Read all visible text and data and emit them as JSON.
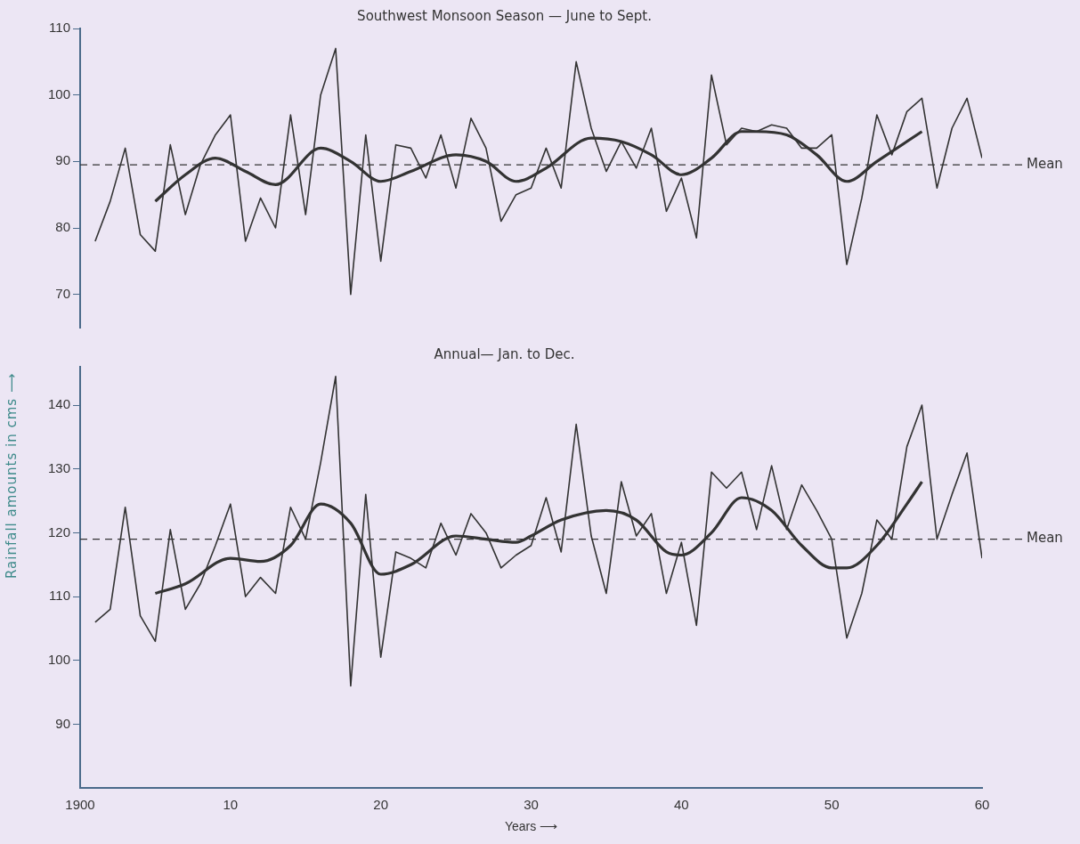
{
  "chart_data": [
    {
      "type": "line",
      "title": "Southwest Monsoon Season — June to Sept.",
      "ylabel": "Rainfall amounts in cms ⟶",
      "xlim": [
        1900,
        1960
      ],
      "ylim": [
        65,
        110
      ],
      "yticks": [
        70,
        80,
        90,
        100,
        110
      ],
      "tick_labels": "y",
      "grid": false,
      "legend": false,
      "marker": "none",
      "series": [
        {
          "color": "#333333",
          "x": [
            1901,
            1902,
            1903,
            1904,
            1905,
            1906,
            1907,
            1908,
            1909,
            1910,
            1911,
            1912,
            1913,
            1914,
            1915,
            1916,
            1917,
            1918,
            1919,
            1920,
            1921,
            1922,
            1923,
            1924,
            1925,
            1926,
            1927,
            1928,
            1929,
            1930,
            1931,
            1932,
            1933,
            1934,
            1935,
            1936,
            1937,
            1938,
            1939,
            1940,
            1941,
            1942,
            1943,
            1944,
            1945,
            1946,
            1947,
            1948,
            1949,
            1950,
            1951,
            1952,
            1953,
            1954,
            1955,
            1956,
            1957,
            1958,
            1959,
            1960
          ],
          "values": [
            78,
            84,
            92,
            79,
            76.5,
            92.5,
            82,
            89.5,
            94,
            97,
            78,
            84.5,
            80,
            97,
            82,
            100,
            107,
            70,
            94,
            75,
            92.5,
            92,
            87.5,
            94,
            86,
            96.5,
            92,
            81,
            85,
            86,
            92,
            86,
            105,
            95,
            88.5,
            93,
            89,
            95,
            82.5,
            87.5,
            78.5,
            103,
            92.5,
            95,
            94.5,
            95.5,
            95,
            92,
            92,
            94,
            74.5,
            84.5,
            97,
            91,
            97.5,
            99.5,
            86,
            95,
            99.5,
            90.5
          ]
        },
        {
          "color": "#333333",
          "x": [
            1905,
            1907,
            1909,
            1911,
            1913,
            1916,
            1918,
            1920,
            1922,
            1925,
            1927,
            1929,
            1931,
            1934,
            1936,
            1938,
            1940,
            1942,
            1944,
            1945,
            1947,
            1949,
            1951,
            1953,
            1956
          ],
          "values": [
            84,
            88,
            90.5,
            88.5,
            86.5,
            92,
            90,
            87,
            88.5,
            91,
            90,
            87,
            89,
            93.5,
            93,
            91,
            88,
            90.5,
            94.5,
            94.5,
            94,
            91,
            87,
            90,
            94.5
          ]
        }
      ],
      "ref_lines": [
        {
          "axis": "y",
          "value": 89.5,
          "label": "Mean",
          "line_style": "dashed"
        }
      ]
    },
    {
      "type": "line",
      "title": "Annual— Jan. to Dec.",
      "xlabel": "Years ⟶",
      "xlim": [
        1900,
        1960
      ],
      "xticks": [
        {
          "value": 1900,
          "label": "1900"
        },
        {
          "value": 1910,
          "label": "10"
        },
        {
          "value": 1920,
          "label": "20"
        },
        {
          "value": 1930,
          "label": "30"
        },
        {
          "value": 1940,
          "label": "40"
        },
        {
          "value": 1950,
          "label": "50"
        },
        {
          "value": 1960,
          "label": "60"
        }
      ],
      "ylim": [
        80,
        146
      ],
      "yticks": [
        90,
        100,
        110,
        120,
        130,
        140
      ],
      "grid": false,
      "legend": false,
      "marker": "none",
      "series": [
        {
          "color": "#333333",
          "x": [
            1901,
            1902,
            1903,
            1904,
            1905,
            1906,
            1907,
            1908,
            1909,
            1910,
            1911,
            1912,
            1913,
            1914,
            1915,
            1916,
            1917,
            1918,
            1919,
            1920,
            1921,
            1922,
            1923,
            1924,
            1925,
            1926,
            1927,
            1928,
            1929,
            1930,
            1931,
            1932,
            1933,
            1934,
            1935,
            1936,
            1937,
            1938,
            1939,
            1940,
            1941,
            1942,
            1943,
            1944,
            1945,
            1946,
            1947,
            1948,
            1949,
            1950,
            1951,
            1952,
            1953,
            1954,
            1955,
            1956,
            1957,
            1958,
            1959,
            1960
          ],
          "values": [
            106,
            108,
            124,
            107,
            103,
            120.5,
            108,
            112,
            118,
            124.5,
            110,
            113,
            110.5,
            124,
            119,
            131,
            144.5,
            96,
            126,
            100.5,
            117,
            116,
            114.5,
            121.5,
            116.5,
            123,
            120,
            114.5,
            116.5,
            118,
            125.5,
            117,
            137,
            119.5,
            110.5,
            128,
            119.5,
            123,
            110.5,
            118.5,
            105.5,
            129.5,
            127,
            129.5,
            120.5,
            130.5,
            120.5,
            127.5,
            123.5,
            119,
            103.5,
            110.5,
            122,
            119,
            133.5,
            140,
            119,
            126,
            132.5,
            116
          ]
        },
        {
          "color": "#333333",
          "x": [
            1905,
            1907,
            1910,
            1912,
            1914,
            1916,
            1918,
            1920,
            1922,
            1925,
            1927,
            1929,
            1930,
            1932,
            1935,
            1937,
            1939,
            1940,
            1942,
            1944,
            1946,
            1948,
            1950,
            1951,
            1953,
            1955,
            1956
          ],
          "values": [
            110.5,
            112,
            116,
            115.5,
            118,
            124.5,
            121.5,
            113.5,
            115,
            119.5,
            119,
            118.5,
            119.5,
            122,
            123.5,
            122,
            117,
            116.5,
            120,
            125.5,
            123.5,
            118,
            114.5,
            114.5,
            118,
            124.5,
            128
          ]
        }
      ],
      "ref_lines": [
        {
          "axis": "y",
          "value": 119,
          "label": "Mean",
          "line_style": "dashed"
        }
      ]
    }
  ]
}
